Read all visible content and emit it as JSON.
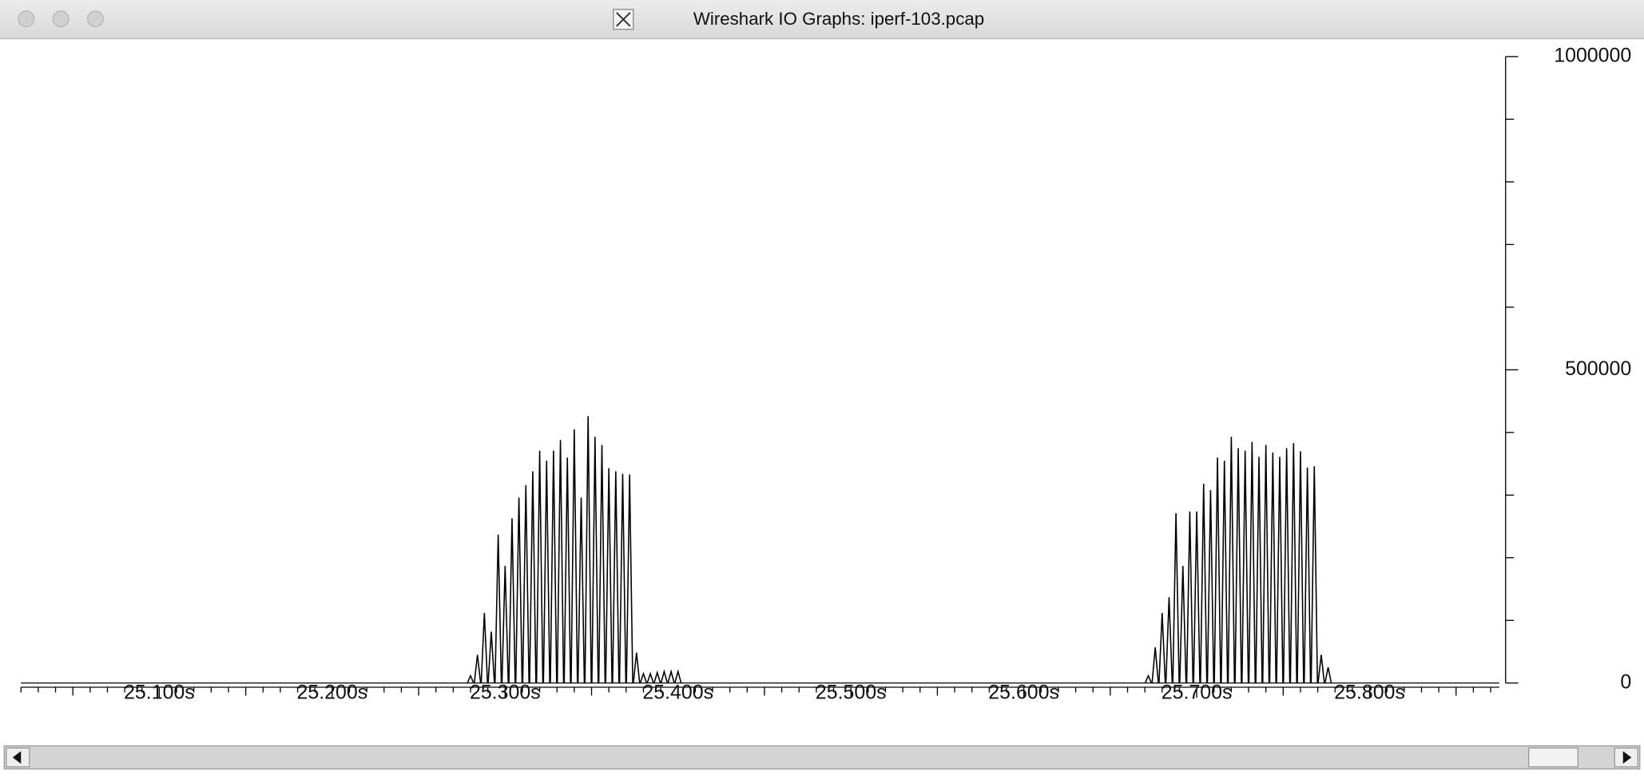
{
  "chart_data": {
    "type": "line",
    "title": "Wireshark IO Graphs: iperf-103.pcap",
    "x": [
      25.28,
      25.284,
      25.288,
      25.292,
      25.296,
      25.3,
      25.304,
      25.308,
      25.312,
      25.316,
      25.32,
      25.324,
      25.328,
      25.332,
      25.336,
      25.34,
      25.344,
      25.348,
      25.352,
      25.356,
      25.36,
      25.364,
      25.368,
      25.372,
      25.376,
      25.38,
      25.384,
      25.388,
      25.392,
      25.396,
      25.4,
      25.672,
      25.676,
      25.68,
      25.684,
      25.688,
      25.692,
      25.696,
      25.7,
      25.704,
      25.708,
      25.712,
      25.716,
      25.72,
      25.724,
      25.728,
      25.732,
      25.736,
      25.74,
      25.744,
      25.748,
      25.752,
      25.756,
      25.76,
      25.764,
      25.768,
      25.772,
      25.776
    ],
    "values": [
      11700,
      45200,
      112000,
      82000,
      237000,
      187000,
      263000,
      296000,
      316000,
      338000,
      371000,
      355000,
      371000,
      388000,
      360000,
      405000,
      296000,
      426000,
      393000,
      380000,
      343000,
      338000,
      334000,
      333000,
      48500,
      15000,
      15000,
      16700,
      18400,
      18400,
      18400,
      11700,
      56900,
      112000,
      137000,
      271000,
      187000,
      274000,
      274000,
      318000,
      308000,
      360000,
      355000,
      393000,
      375000,
      371000,
      385000,
      361000,
      380000,
      368000,
      361000,
      375000,
      383000,
      370000,
      344000,
      346000,
      45200,
      25100
    ],
    "color": "#000000",
    "xlim": [
      25.02,
      25.875
    ],
    "xticks": [
      {
        "value": 25.1,
        "label": "25.100s"
      },
      {
        "value": 25.2,
        "label": "25.200s"
      },
      {
        "value": 25.3,
        "label": "25.300s"
      },
      {
        "value": 25.4,
        "label": "25.400s"
      },
      {
        "value": 25.5,
        "label": "25.500s"
      },
      {
        "value": 25.6,
        "label": "25.600s"
      },
      {
        "value": 25.7,
        "label": "25.700s"
      },
      {
        "value": 25.8,
        "label": "25.800s"
      }
    ],
    "ylim": [
      0,
      1000000
    ],
    "yticks": [
      0,
      500000,
      1000000
    ]
  }
}
